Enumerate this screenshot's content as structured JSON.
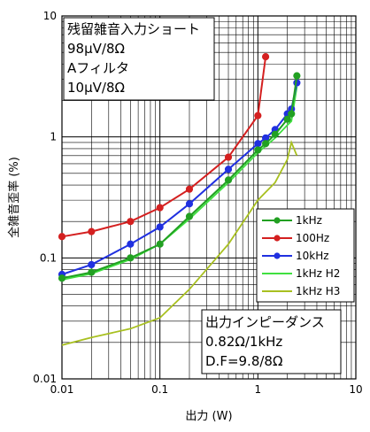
{
  "chart_data": {
    "type": "line",
    "xlabel": "出力 (W)",
    "ylabel": "全雑音歪率 (%)",
    "x_scale": "log",
    "y_scale": "log",
    "xlim": [
      0.01,
      10
    ],
    "ylim": [
      0.01,
      10
    ],
    "x_ticks": [
      "0.01",
      "0.1",
      "1",
      "10"
    ],
    "y_ticks": [
      "10",
      "1",
      "0.1",
      "0.01"
    ],
    "grid": true,
    "legend_placement": "right",
    "series": [
      {
        "name": "1kHz",
        "color": "#22a022",
        "markers": true,
        "x": [
          0.01,
          0.02,
          0.05,
          0.1,
          0.2,
          0.5,
          1.0,
          1.2,
          1.5,
          2.0,
          2.2,
          2.5
        ],
        "y": [
          0.068,
          0.076,
          0.1,
          0.13,
          0.22,
          0.44,
          0.78,
          0.88,
          1.05,
          1.4,
          1.55,
          3.2
        ]
      },
      {
        "name": "100Hz",
        "color": "#d42020",
        "markers": true,
        "x": [
          0.01,
          0.02,
          0.05,
          0.1,
          0.2,
          0.5,
          1.0,
          1.2
        ],
        "y": [
          0.15,
          0.165,
          0.2,
          0.26,
          0.37,
          0.68,
          1.5,
          4.6
        ]
      },
      {
        "name": "10kHz",
        "color": "#2030e0",
        "markers": true,
        "x": [
          0.01,
          0.02,
          0.05,
          0.1,
          0.2,
          0.5,
          1.0,
          1.2,
          1.5,
          2.0,
          2.2,
          2.5
        ],
        "y": [
          0.073,
          0.088,
          0.13,
          0.18,
          0.28,
          0.54,
          0.88,
          0.98,
          1.15,
          1.55,
          1.7,
          2.8
        ]
      },
      {
        "name": "1kHz H2",
        "color": "#40e040",
        "markers": false,
        "x": [
          0.01,
          0.02,
          0.05,
          0.1,
          0.2,
          0.5,
          1.0,
          1.5,
          2.0,
          2.2,
          2.5
        ],
        "y": [
          0.066,
          0.074,
          0.097,
          0.13,
          0.21,
          0.42,
          0.74,
          0.98,
          1.25,
          1.35,
          2.6
        ]
      },
      {
        "name": "1kHz H3",
        "color": "#a8c020",
        "markers": false,
        "x": [
          0.01,
          0.02,
          0.05,
          0.1,
          0.2,
          0.5,
          1.0,
          1.5,
          2.0,
          2.2,
          2.5
        ],
        "y": [
          0.019,
          0.022,
          0.026,
          0.032,
          0.055,
          0.13,
          0.3,
          0.42,
          0.65,
          0.9,
          0.7
        ]
      }
    ],
    "annotations": {
      "box1": [
        "残留雑音入力ショート",
        "98μV/8Ω",
        "Aフィルタ",
        "10μV/8Ω"
      ],
      "box2": [
        "出力インピーダンス",
        "0.82Ω/1kHz",
        "D.F=9.8/8Ω"
      ]
    }
  }
}
